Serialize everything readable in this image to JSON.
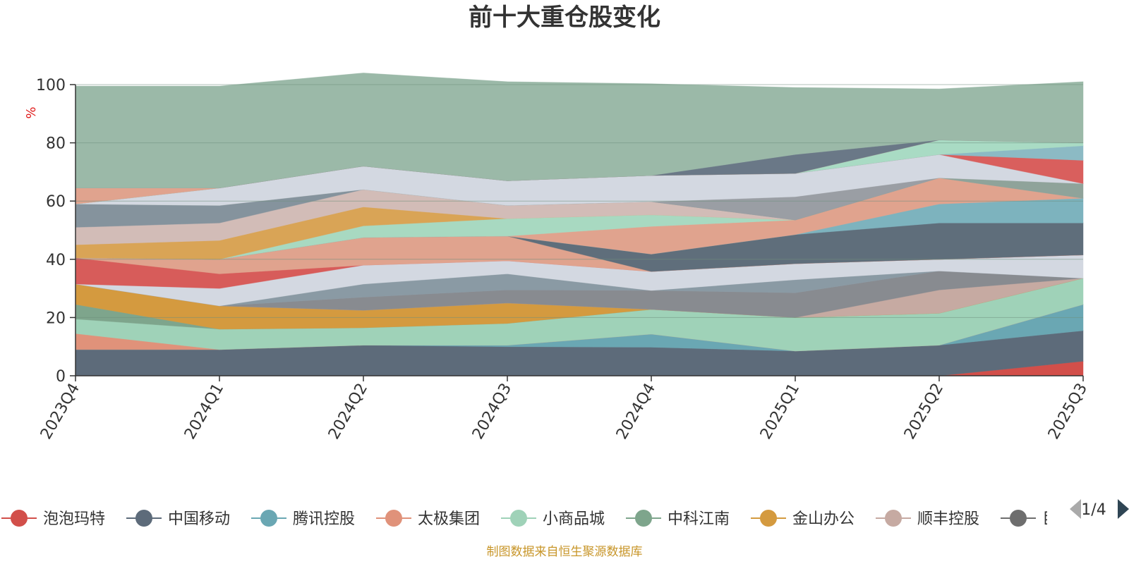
{
  "chart_data": {
    "type": "area",
    "stacked": true,
    "normalized_percent": true,
    "title": "前十大重仓股变化",
    "ylabel": "%",
    "ylim": [
      0,
      100
    ],
    "yticks": [
      0,
      20,
      40,
      60,
      80,
      100
    ],
    "categories": [
      "2023Q4",
      "2024Q1",
      "2024Q2",
      "2024Q3",
      "2024Q4",
      "2025Q1",
      "2025Q2",
      "2025Q3"
    ],
    "grid": true,
    "series": [
      {
        "name": "泡泡玛特",
        "color": "#d24f4a",
        "values": [
          0,
          0,
          0,
          0,
          0,
          0,
          0,
          5
        ]
      },
      {
        "name": "中国移动",
        "color": "#5d6b7a",
        "values": [
          9,
          9,
          10.5,
          10,
          9.8,
          8.5,
          10.5,
          10.5
        ]
      },
      {
        "name": "腾讯控股",
        "color": "#6aa7b3",
        "values": [
          0,
          0,
          0,
          0.5,
          4.5,
          0,
          0,
          9
        ]
      },
      {
        "name": "太极集团",
        "color": "#e0927a",
        "values": [
          5.5,
          0,
          0,
          0,
          0,
          0,
          0,
          0
        ]
      },
      {
        "name": "小商品城",
        "color": "#9fd2b8",
        "values": [
          5,
          7,
          6,
          7.5,
          8.5,
          11.5,
          11,
          9
        ]
      },
      {
        "name": "中科江南",
        "color": "#7ea58c",
        "values": [
          5,
          0,
          0,
          0,
          0,
          0,
          0,
          0
        ]
      },
      {
        "name": "金山办公",
        "color": "#d49a3f",
        "values": [
          7,
          8,
          6,
          7,
          0,
          0,
          0,
          0
        ]
      },
      {
        "name": "顺丰控股",
        "color": "#c6aaa2",
        "values": [
          0,
          0,
          0,
          0,
          0,
          0,
          8,
          0
        ]
      },
      {
        "color": "#888b90",
        "values": [
          0,
          0,
          4.5,
          4.5,
          6.5,
          8.5,
          6.5,
          0
        ]
      },
      {
        "color": "#8a9aa4",
        "values": [
          0,
          0,
          4.5,
          5.5,
          0,
          4.5,
          0,
          0
        ]
      },
      {
        "color": "#d3d8e1",
        "values": [
          0,
          6,
          6.5,
          4.5,
          6.5,
          5.5,
          4,
          8
        ]
      },
      {
        "color": "#d75c5a",
        "values": [
          9,
          5,
          0,
          0,
          0,
          0,
          0,
          0
        ]
      },
      {
        "color": "#e0a38e",
        "values": [
          0,
          5,
          9.5,
          8.5,
          0,
          0,
          0,
          0
        ]
      },
      {
        "color": "#e0a38e",
        "values": [
          0,
          0,
          0,
          0,
          0,
          0,
          0,
          0
        ]
      },
      {
        "color": "#5f6e7b",
        "values": [
          0,
          0,
          0,
          0,
          6,
          10,
          12.5,
          11
        ]
      },
      {
        "color": "#7db3be",
        "values": [
          0,
          0,
          0,
          0,
          0,
          0,
          6.5,
          8.5
        ]
      },
      {
        "color": "#e0a38e",
        "values": [
          0,
          0,
          0,
          0,
          9.5,
          5,
          9,
          0
        ]
      },
      {
        "color": "#a8d9c1",
        "values": [
          0,
          0,
          4,
          6,
          4,
          0,
          0,
          0
        ]
      },
      {
        "color": "#d9a456",
        "values": [
          4.5,
          6.5,
          6.5,
          0,
          0,
          0,
          0,
          0
        ]
      },
      {
        "color": "#d2bcb7",
        "values": [
          6,
          6,
          6,
          4.5,
          4.5,
          0,
          0,
          0
        ]
      },
      {
        "color": "#85939d",
        "values": [
          8,
          6,
          0,
          0,
          0,
          0,
          0,
          0
        ]
      },
      {
        "color": "#8fa39a",
        "values": [
          0,
          0,
          0,
          0,
          0,
          0,
          0,
          5
        ]
      },
      {
        "color": "#9a9ea4",
        "values": [
          0,
          0,
          0,
          0,
          0,
          8,
          0,
          0
        ]
      },
      {
        "color": "#d3d8e1",
        "values": [
          0,
          6,
          8,
          8.5,
          9,
          8,
          8,
          0
        ]
      },
      {
        "color": "#c9d0da",
        "values": [
          0,
          0,
          0,
          0,
          0,
          0,
          0,
          0
        ]
      },
      {
        "color": "#d95f5d",
        "values": [
          0,
          0,
          0,
          0,
          0,
          0,
          0,
          8
        ]
      },
      {
        "color": "#8cbac4",
        "values": [
          0,
          0,
          0,
          0,
          0,
          0,
          0,
          5
        ]
      },
      {
        "color": "#a9dbc4",
        "values": [
          0,
          0,
          0,
          0,
          0,
          0,
          5,
          1
        ]
      },
      {
        "color": "#e0a38e",
        "values": [
          5.5,
          0,
          0,
          0,
          0,
          0,
          0,
          0
        ]
      },
      {
        "color": "#6a7887",
        "values": [
          0,
          0,
          0,
          0,
          0,
          6.5,
          0,
          0
        ]
      },
      {
        "color": "#9bb9a8",
        "values": [
          35,
          35,
          32,
          34,
          31.5,
          23,
          17.5,
          21
        ]
      }
    ]
  },
  "legend": {
    "page": "1/4",
    "partial_item": "巨"
  },
  "footer": "制图数据来自恒生聚源数据库"
}
